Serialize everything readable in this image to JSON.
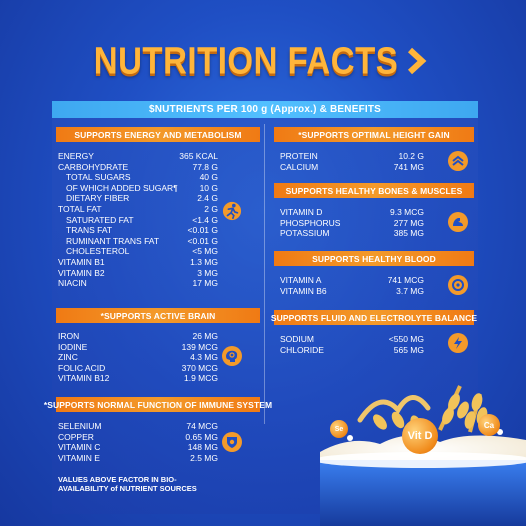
{
  "title": "NUTRITION FACTS",
  "banner": "$NUTRIENTS PER 100 g (Approx.) & BENEFITS",
  "footnote": "VALUES ABOVE FACTOR IN BIO-AVAILABILITY of NUTRIENT SOURCES",
  "left_sections": [
    {
      "heading": "SUPPORTS ENERGY AND METABOLISM",
      "icon": "running-person-icon",
      "rows": [
        {
          "name": "ENERGY",
          "value": "365 KCAL",
          "indent": false
        },
        {
          "name": "CARBOHYDRATE",
          "value": "77.8 G",
          "indent": false
        },
        {
          "name": "TOTAL SUGARS",
          "value": "40 G",
          "indent": true
        },
        {
          "name": "OF WHICH ADDED SUGAR¶",
          "value": "10 G",
          "indent": true
        },
        {
          "name": "DIETARY FIBER",
          "value": "2.4 G",
          "indent": true
        },
        {
          "name": "TOTAL FAT",
          "value": "2 G",
          "indent": false
        },
        {
          "name": "SATURATED FAT",
          "value": "<1.4 G",
          "indent": true
        },
        {
          "name": "TRANS FAT",
          "value": "<0.01 G",
          "indent": true
        },
        {
          "name": "RUMINANT TRANS FAT",
          "value": "<0.01 G",
          "indent": true
        },
        {
          "name": "CHOLESTEROL",
          "value": "<5 MG",
          "indent": true
        },
        {
          "name": "VITAMIN B1",
          "value": "1.3 MG",
          "indent": false
        },
        {
          "name": "VITAMIN B2",
          "value": "3 MG",
          "indent": false
        },
        {
          "name": "NIACIN",
          "value": "17 MG",
          "indent": false
        }
      ]
    },
    {
      "heading": "*SUPPORTS ACTIVE BRAIN",
      "icon": "brain-gear-icon",
      "rows": [
        {
          "name": "IRON",
          "value": "26 MG",
          "indent": false
        },
        {
          "name": "IODINE",
          "value": "139 MCG",
          "indent": false
        },
        {
          "name": "ZINC",
          "value": "4.3 MG",
          "indent": false
        },
        {
          "name": "FOLIC ACID",
          "value": "370 MCG",
          "indent": false
        },
        {
          "name": "VITAMIN B12",
          "value": "1.9 MCG",
          "indent": false
        }
      ]
    },
    {
      "heading": "*SUPPORTS NORMAL FUNCTION OF IMMUNE SYSTEM",
      "icon": "virus-shield-icon",
      "rows": [
        {
          "name": "SELENIUM",
          "value": "74 MCG",
          "indent": false
        },
        {
          "name": "COPPER",
          "value": "0.65 MG",
          "indent": false
        },
        {
          "name": "VITAMIN C",
          "value": "148 MG",
          "indent": false
        },
        {
          "name": "VITAMIN E",
          "value": "2.5 MG",
          "indent": false
        }
      ]
    }
  ],
  "right_sections": [
    {
      "heading": "*SUPPORTS OPTIMAL HEIGHT GAIN",
      "icon": "double-chevron-up-icon",
      "rows": [
        {
          "name": "PROTEIN",
          "value": "10.2 G"
        },
        {
          "name": "CALCIUM",
          "value": "741 MG"
        }
      ]
    },
    {
      "heading": "SUPPORTS HEALTHY BONES & MUSCLES",
      "icon": "muscle-arm-icon",
      "rows": [
        {
          "name": "VITAMIN D",
          "value": "9.3 MCG"
        },
        {
          "name": "PHOSPHORUS",
          "value": "277 MG"
        },
        {
          "name": "POTASSIUM",
          "value": "385 MG"
        }
      ]
    },
    {
      "heading": "SUPPORTS HEALTHY BLOOD",
      "icon": "blood-cell-icon",
      "rows": [
        {
          "name": "VITAMIN A",
          "value": "741 MCG"
        },
        {
          "name": "VITAMIN B6",
          "value": "3.7 MG"
        }
      ]
    },
    {
      "heading": "SUPPORTS FLUID AND ELECTROLYTE BALANCE",
      "icon": "lightning-bolt-icon",
      "rows": [
        {
          "name": "SODIUM",
          "value": "<550 MG"
        },
        {
          "name": "CHLORIDE",
          "value": "565 MG"
        }
      ]
    }
  ],
  "illustration": {
    "orbs": [
      "Se",
      "Vit D",
      "Ca"
    ]
  }
}
